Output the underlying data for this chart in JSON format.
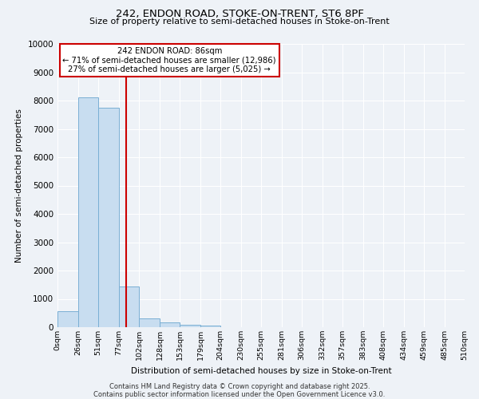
{
  "title1": "242, ENDON ROAD, STOKE-ON-TRENT, ST6 8PF",
  "title2": "Size of property relative to semi-detached houses in Stoke-on-Trent",
  "xlabel": "Distribution of semi-detached houses by size in Stoke-on-Trent",
  "ylabel": "Number of semi-detached properties",
  "annotation_line1": "242 ENDON ROAD: 86sqm",
  "annotation_line2": "← 71% of semi-detached houses are smaller (12,986)",
  "annotation_line3": "27% of semi-detached houses are larger (5,025) →",
  "bin_edges": [
    0,
    26,
    51,
    77,
    102,
    128,
    153,
    179,
    204,
    230,
    255,
    281,
    306,
    332,
    357,
    383,
    408,
    434,
    459,
    485,
    510
  ],
  "bar_heights": [
    570,
    8100,
    7750,
    1450,
    320,
    155,
    90,
    50,
    0,
    0,
    0,
    0,
    0,
    0,
    0,
    0,
    0,
    0,
    0,
    0
  ],
  "bar_color": "#c8ddf0",
  "bar_edgecolor": "#7aafd4",
  "vline_color": "#cc0000",
  "vline_x": 86,
  "ylim": [
    0,
    10000
  ],
  "yticks": [
    0,
    1000,
    2000,
    3000,
    4000,
    5000,
    6000,
    7000,
    8000,
    9000,
    10000
  ],
  "background_color": "#eef2f7",
  "grid_color": "#ffffff",
  "footer_line1": "Contains HM Land Registry data © Crown copyright and database right 2025.",
  "footer_line2": "Contains public sector information licensed under the Open Government Licence v3.0."
}
